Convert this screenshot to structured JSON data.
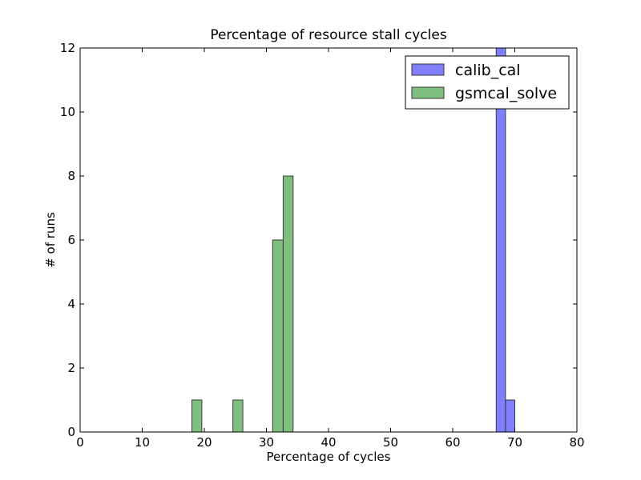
{
  "chart_data": {
    "type": "bar",
    "title": "Percentage of resource stall cycles",
    "xlabel": "Percentage of cycles",
    "ylabel": "# of runs",
    "xlim": [
      0,
      80
    ],
    "ylim": [
      0,
      12
    ],
    "xticks": [
      0,
      10,
      20,
      30,
      40,
      50,
      60,
      70,
      80
    ],
    "yticks": [
      0,
      2,
      4,
      6,
      8,
      10,
      12
    ],
    "grid": false,
    "legend_position": "top-right",
    "series": [
      {
        "name": "calib_cal",
        "color": "#7f7fff",
        "bins": [
          {
            "x0": 67.0,
            "x1": 68.5,
            "value": 12
          },
          {
            "x0": 68.5,
            "x1": 70.0,
            "value": 1
          }
        ]
      },
      {
        "name": "gsmcal_solve",
        "color": "#7fbf7f",
        "bins": [
          {
            "x0": 18.0,
            "x1": 19.6,
            "value": 1
          },
          {
            "x0": 24.6,
            "x1": 26.2,
            "value": 1
          },
          {
            "x0": 31.0,
            "x1": 32.7,
            "value": 6
          },
          {
            "x0": 32.7,
            "x1": 34.3,
            "value": 8
          }
        ]
      }
    ]
  }
}
